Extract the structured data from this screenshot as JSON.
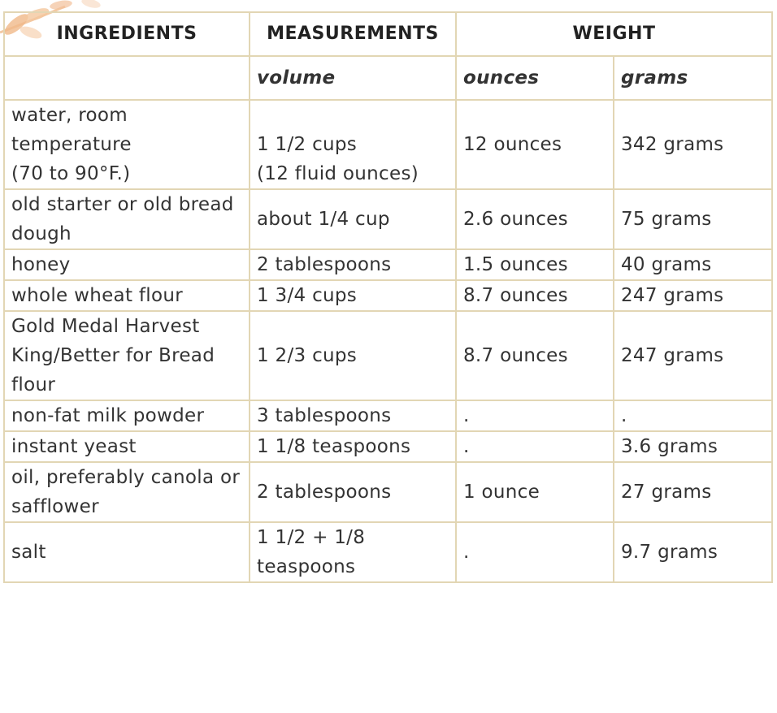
{
  "table": {
    "headers": {
      "ingredients": "INGREDIENTS",
      "measurements": "MEASUREMENTS",
      "weight": "WEIGHT"
    },
    "subheaders": {
      "blank": "",
      "volume": "volume",
      "ounces": "ounces",
      "grams": "grams"
    },
    "rows": [
      {
        "ingredient": [
          "water, room",
          "temperature",
          "(70 to 90°F.)"
        ],
        "volume": [
          "1 1/2 cups",
          "(12 fluid ounces)"
        ],
        "ounces": "12 ounces",
        "grams": "342 grams"
      },
      {
        "ingredient": [
          "old starter or old bread",
          "dough"
        ],
        "volume": [
          "about 1/4 cup"
        ],
        "ounces": "2.6 ounces",
        "grams": "75 grams"
      },
      {
        "ingredient": [
          "honey"
        ],
        "volume": [
          "2 tablespoons"
        ],
        "ounces": "1.5 ounces",
        "grams": "40 grams"
      },
      {
        "ingredient": [
          "whole wheat flour"
        ],
        "volume": [
          "1 3/4 cups"
        ],
        "ounces": "8.7 ounces",
        "grams": "247 grams"
      },
      {
        "ingredient": [
          "Gold Medal Harvest",
          "King/Better for Bread",
          "flour"
        ],
        "volume": [
          "1 2/3 cups"
        ],
        "ounces": "8.7 ounces",
        "grams": "247 grams"
      },
      {
        "ingredient": [
          "non-fat milk powder"
        ],
        "volume": [
          "3 tablespoons"
        ],
        "ounces": ".",
        "grams": "."
      },
      {
        "ingredient": [
          "instant yeast"
        ],
        "volume": [
          "1 1/8 teaspoons"
        ],
        "ounces": ".",
        "grams": "3.6 grams"
      },
      {
        "ingredient": [
          "oil, preferably canola or",
          "safflower"
        ],
        "volume": [
          "2 tablespoons"
        ],
        "ounces": "1 ounce",
        "grams": "27 grams"
      },
      {
        "ingredient": [
          "salt"
        ],
        "volume": [
          "1 1/2 + 1/8",
          "teaspoons"
        ],
        "ounces": ".",
        "grams": "9.7 grams"
      }
    ]
  },
  "colors": {
    "border": "#e2d6b4",
    "text": "#333333",
    "leaf": "#f0b98a"
  },
  "icons": {
    "decoration": "leaf-branch-decoration"
  }
}
